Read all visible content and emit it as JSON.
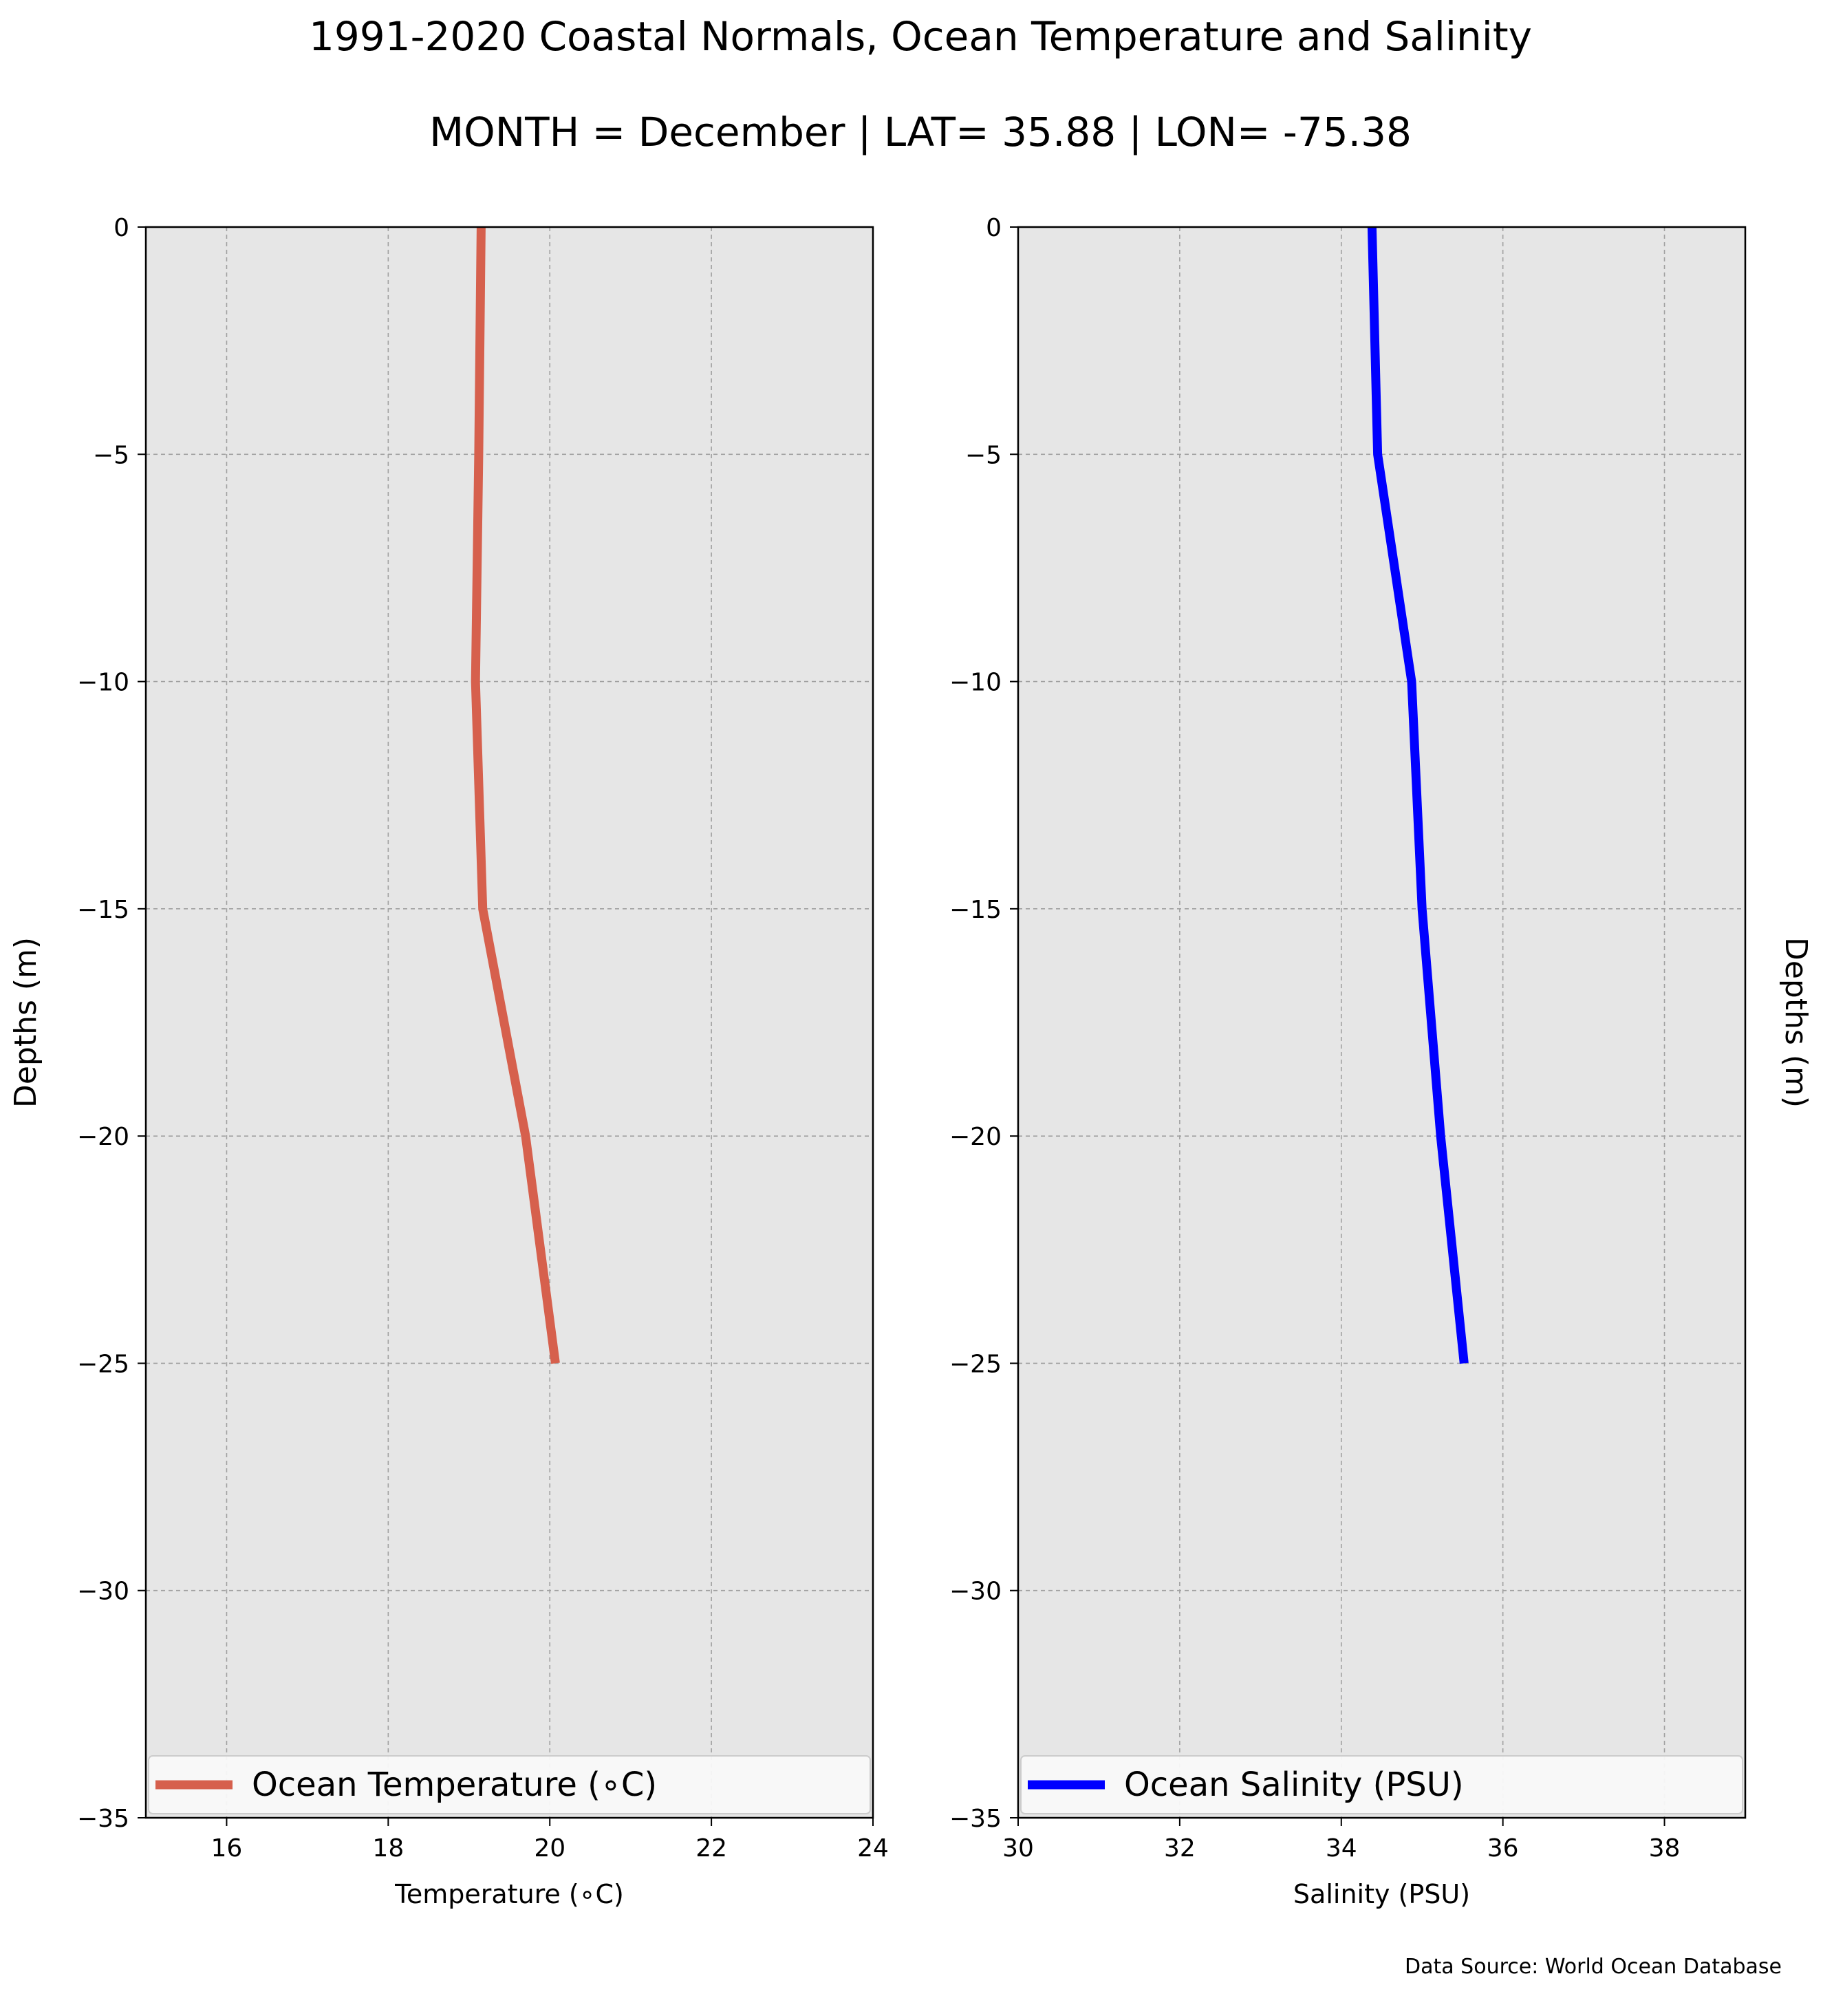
{
  "figure": {
    "title_line1": "1991-2020 Coastal Normals, Ocean Temperature and Salinity",
    "title_line2": "MONTH = December | LAT= 35.88 | LON= -75.38",
    "source_note": "Data Source: World Ocean Database",
    "background_color": "#ffffff",
    "panel_color": "#e6e6e6",
    "grid_color": "#a0a0a0"
  },
  "chart_data": [
    {
      "type": "line",
      "xlabel": "Temperature (∘C)",
      "ylabel": "Depths (m)",
      "ylabel_side": "left",
      "xlim": [
        15,
        24
      ],
      "ylim": [
        -35,
        0
      ],
      "x_ticks": [
        16,
        18,
        20,
        22,
        24
      ],
      "x_tick_labels": [
        "16",
        "18",
        "20",
        "22",
        "24"
      ],
      "y_ticks": [
        0,
        -5,
        -10,
        -15,
        -20,
        -25,
        -30,
        -35
      ],
      "y_tick_labels": [
        "0",
        "−5",
        "−10",
        "−15",
        "−20",
        "−25",
        "−30",
        "−35"
      ],
      "grid": true,
      "legend_position": "bottom",
      "series": [
        {
          "name": "Ocean Temperature (∘C)",
          "color": "#d6604d",
          "x": [
            19.15,
            19.12,
            19.08,
            19.17,
            19.7,
            20.07
          ],
          "y": [
            0,
            -5,
            -10,
            -15,
            -20,
            -25
          ]
        }
      ]
    },
    {
      "type": "line",
      "xlabel": "Salinity (PSU)",
      "ylabel": "Depths (m)",
      "ylabel_side": "right",
      "xlim": [
        30,
        39
      ],
      "ylim": [
        -35,
        0
      ],
      "x_ticks": [
        30,
        32,
        34,
        36,
        38
      ],
      "x_tick_labels": [
        "30",
        "32",
        "34",
        "36",
        "38"
      ],
      "y_ticks": [
        0,
        -5,
        -10,
        -15,
        -20,
        -25,
        -30,
        -35
      ],
      "y_tick_labels": [
        "0",
        "−5",
        "−10",
        "−15",
        "−20",
        "−25",
        "−30",
        "−35"
      ],
      "grid": true,
      "legend_position": "bottom",
      "series": [
        {
          "name": "Ocean Salinity (PSU)",
          "color": "#0000ff",
          "x": [
            34.38,
            34.45,
            34.87,
            35.0,
            35.23,
            35.52
          ],
          "y": [
            0,
            -5,
            -10,
            -15,
            -20,
            -25
          ]
        }
      ]
    }
  ]
}
